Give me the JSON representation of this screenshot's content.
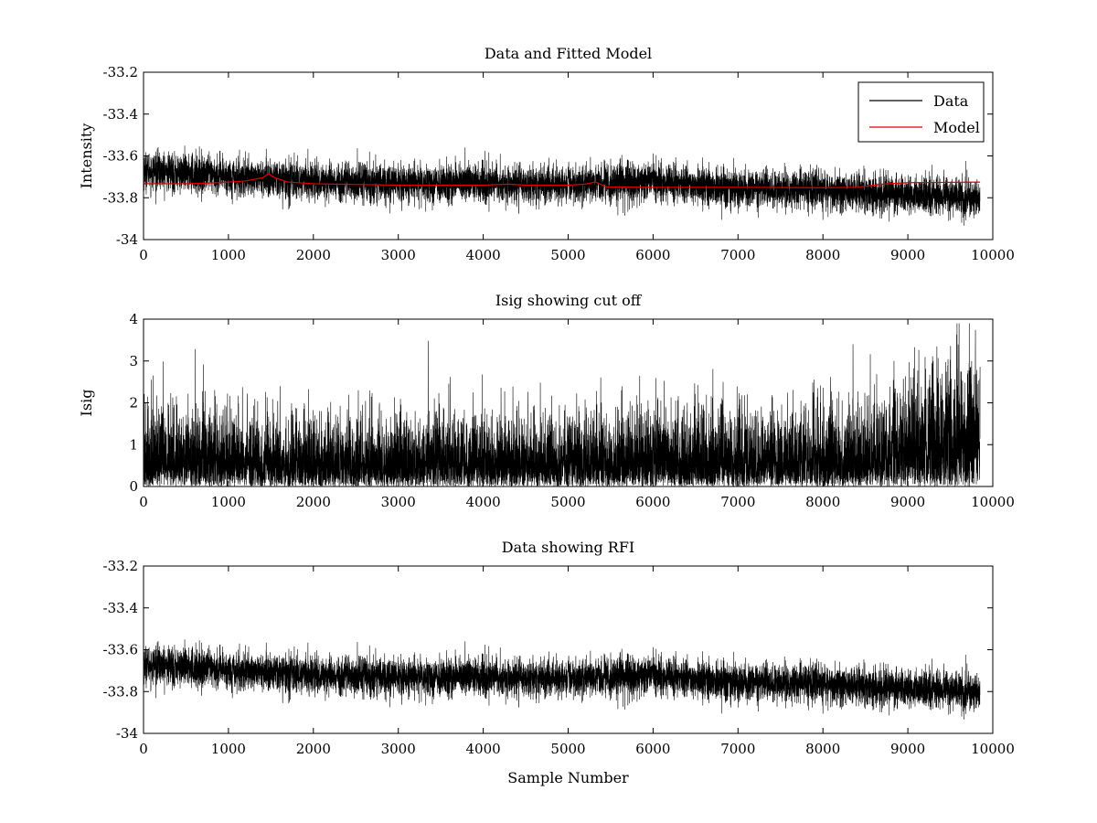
{
  "chart_data": [
    {
      "type": "line",
      "title": "Data and Fitted Model",
      "xlabel": "",
      "ylabel": "Intensity",
      "xlim": [
        0,
        10000
      ],
      "ylim": [
        -34,
        -33.2
      ],
      "xticks": [
        0,
        1000,
        2000,
        3000,
        4000,
        5000,
        6000,
        7000,
        8000,
        9000,
        10000
      ],
      "yticks": [
        -33.2,
        -33.4,
        -33.6,
        -33.8,
        -34
      ],
      "xtick_labels": [
        "0",
        "1000",
        "2000",
        "3000",
        "4000",
        "5000",
        "6000",
        "7000",
        "8000",
        "9000",
        "10000"
      ],
      "ytick_labels": [
        "-33.2",
        "-33.4",
        "-33.6",
        "-33.8",
        "-34"
      ],
      "legend": {
        "position": "top-right",
        "entries": [
          "Data",
          "Model"
        ]
      },
      "series": [
        {
          "name": "Data",
          "color": "#000000",
          "style": "noisy",
          "x_range": [
            0,
            9850
          ],
          "n_points": 9850,
          "trend_x": [
            0,
            1000,
            2000,
            3000,
            4000,
            5000,
            6000,
            7000,
            8000,
            9000,
            9850
          ],
          "trend_y": [
            -33.67,
            -33.7,
            -33.72,
            -33.73,
            -33.73,
            -33.74,
            -33.72,
            -33.76,
            -33.76,
            -33.79,
            -33.8
          ],
          "noise_sd": 0.045
        },
        {
          "name": "Model",
          "color": "#e00000",
          "style": "line",
          "x": [
            0,
            500,
            900,
            1200,
            1400,
            1470,
            1550,
            1700,
            2000,
            3000,
            4000,
            4300,
            4500,
            5000,
            5200,
            5320,
            5450,
            6000,
            7000,
            8000,
            8400,
            8700,
            9000,
            9850
          ],
          "y": [
            -33.733,
            -33.733,
            -33.728,
            -33.72,
            -33.705,
            -33.685,
            -33.705,
            -33.725,
            -33.733,
            -33.74,
            -33.74,
            -33.735,
            -33.74,
            -33.74,
            -33.735,
            -33.725,
            -33.748,
            -33.75,
            -33.75,
            -33.752,
            -33.75,
            -33.735,
            -33.728,
            -33.725
          ]
        }
      ]
    },
    {
      "type": "line",
      "title": "Isig showing cut off",
      "xlabel": "",
      "ylabel": "Isig",
      "xlim": [
        0,
        10000
      ],
      "ylim": [
        0,
        4
      ],
      "xticks": [
        0,
        1000,
        2000,
        3000,
        4000,
        5000,
        6000,
        7000,
        8000,
        9000,
        10000
      ],
      "yticks": [
        0,
        1,
        2,
        3,
        4
      ],
      "xtick_labels": [
        "0",
        "1000",
        "2000",
        "3000",
        "4000",
        "5000",
        "6000",
        "7000",
        "8000",
        "9000",
        "10000"
      ],
      "ytick_labels": [
        "0",
        "1",
        "2",
        "3",
        "4"
      ],
      "series": [
        {
          "name": "Isig",
          "color": "#000000",
          "style": "abs-noise",
          "x_range": [
            0,
            9850
          ],
          "n_points": 9850,
          "scale_x": [
            0,
            1000,
            2000,
            3000,
            4000,
            5000,
            5900,
            6100,
            7000,
            8000,
            8600,
            8900,
            9300,
            9850
          ],
          "scale_y": [
            0.95,
            0.82,
            0.78,
            0.78,
            0.8,
            0.78,
            0.85,
            0.95,
            0.8,
            0.8,
            0.9,
            1.1,
            1.3,
            1.45
          ],
          "max_value": 3.9
        }
      ]
    },
    {
      "type": "line",
      "title": "Data showing RFI",
      "xlabel": "Sample Number",
      "ylabel": "",
      "xlim": [
        0,
        10000
      ],
      "ylim": [
        -34,
        -33.2
      ],
      "xticks": [
        0,
        1000,
        2000,
        3000,
        4000,
        5000,
        6000,
        7000,
        8000,
        9000,
        10000
      ],
      "yticks": [
        -33.2,
        -33.4,
        -33.6,
        -33.8,
        -34
      ],
      "xtick_labels": [
        "0",
        "1000",
        "2000",
        "3000",
        "4000",
        "5000",
        "6000",
        "7000",
        "8000",
        "9000",
        "10000"
      ],
      "ytick_labels": [
        "-33.2",
        "-33.4",
        "-33.6",
        "-33.8",
        "-34"
      ],
      "series": [
        {
          "name": "Data",
          "color": "#000000",
          "style": "noisy",
          "x_range": [
            0,
            9850
          ],
          "n_points": 9850,
          "trend_x": [
            0,
            1000,
            2000,
            3000,
            4000,
            5000,
            6000,
            7000,
            8000,
            9000,
            9850
          ],
          "trend_y": [
            -33.67,
            -33.7,
            -33.72,
            -33.73,
            -33.73,
            -33.74,
            -33.72,
            -33.76,
            -33.76,
            -33.79,
            -33.8
          ],
          "noise_sd": 0.045
        }
      ]
    }
  ]
}
